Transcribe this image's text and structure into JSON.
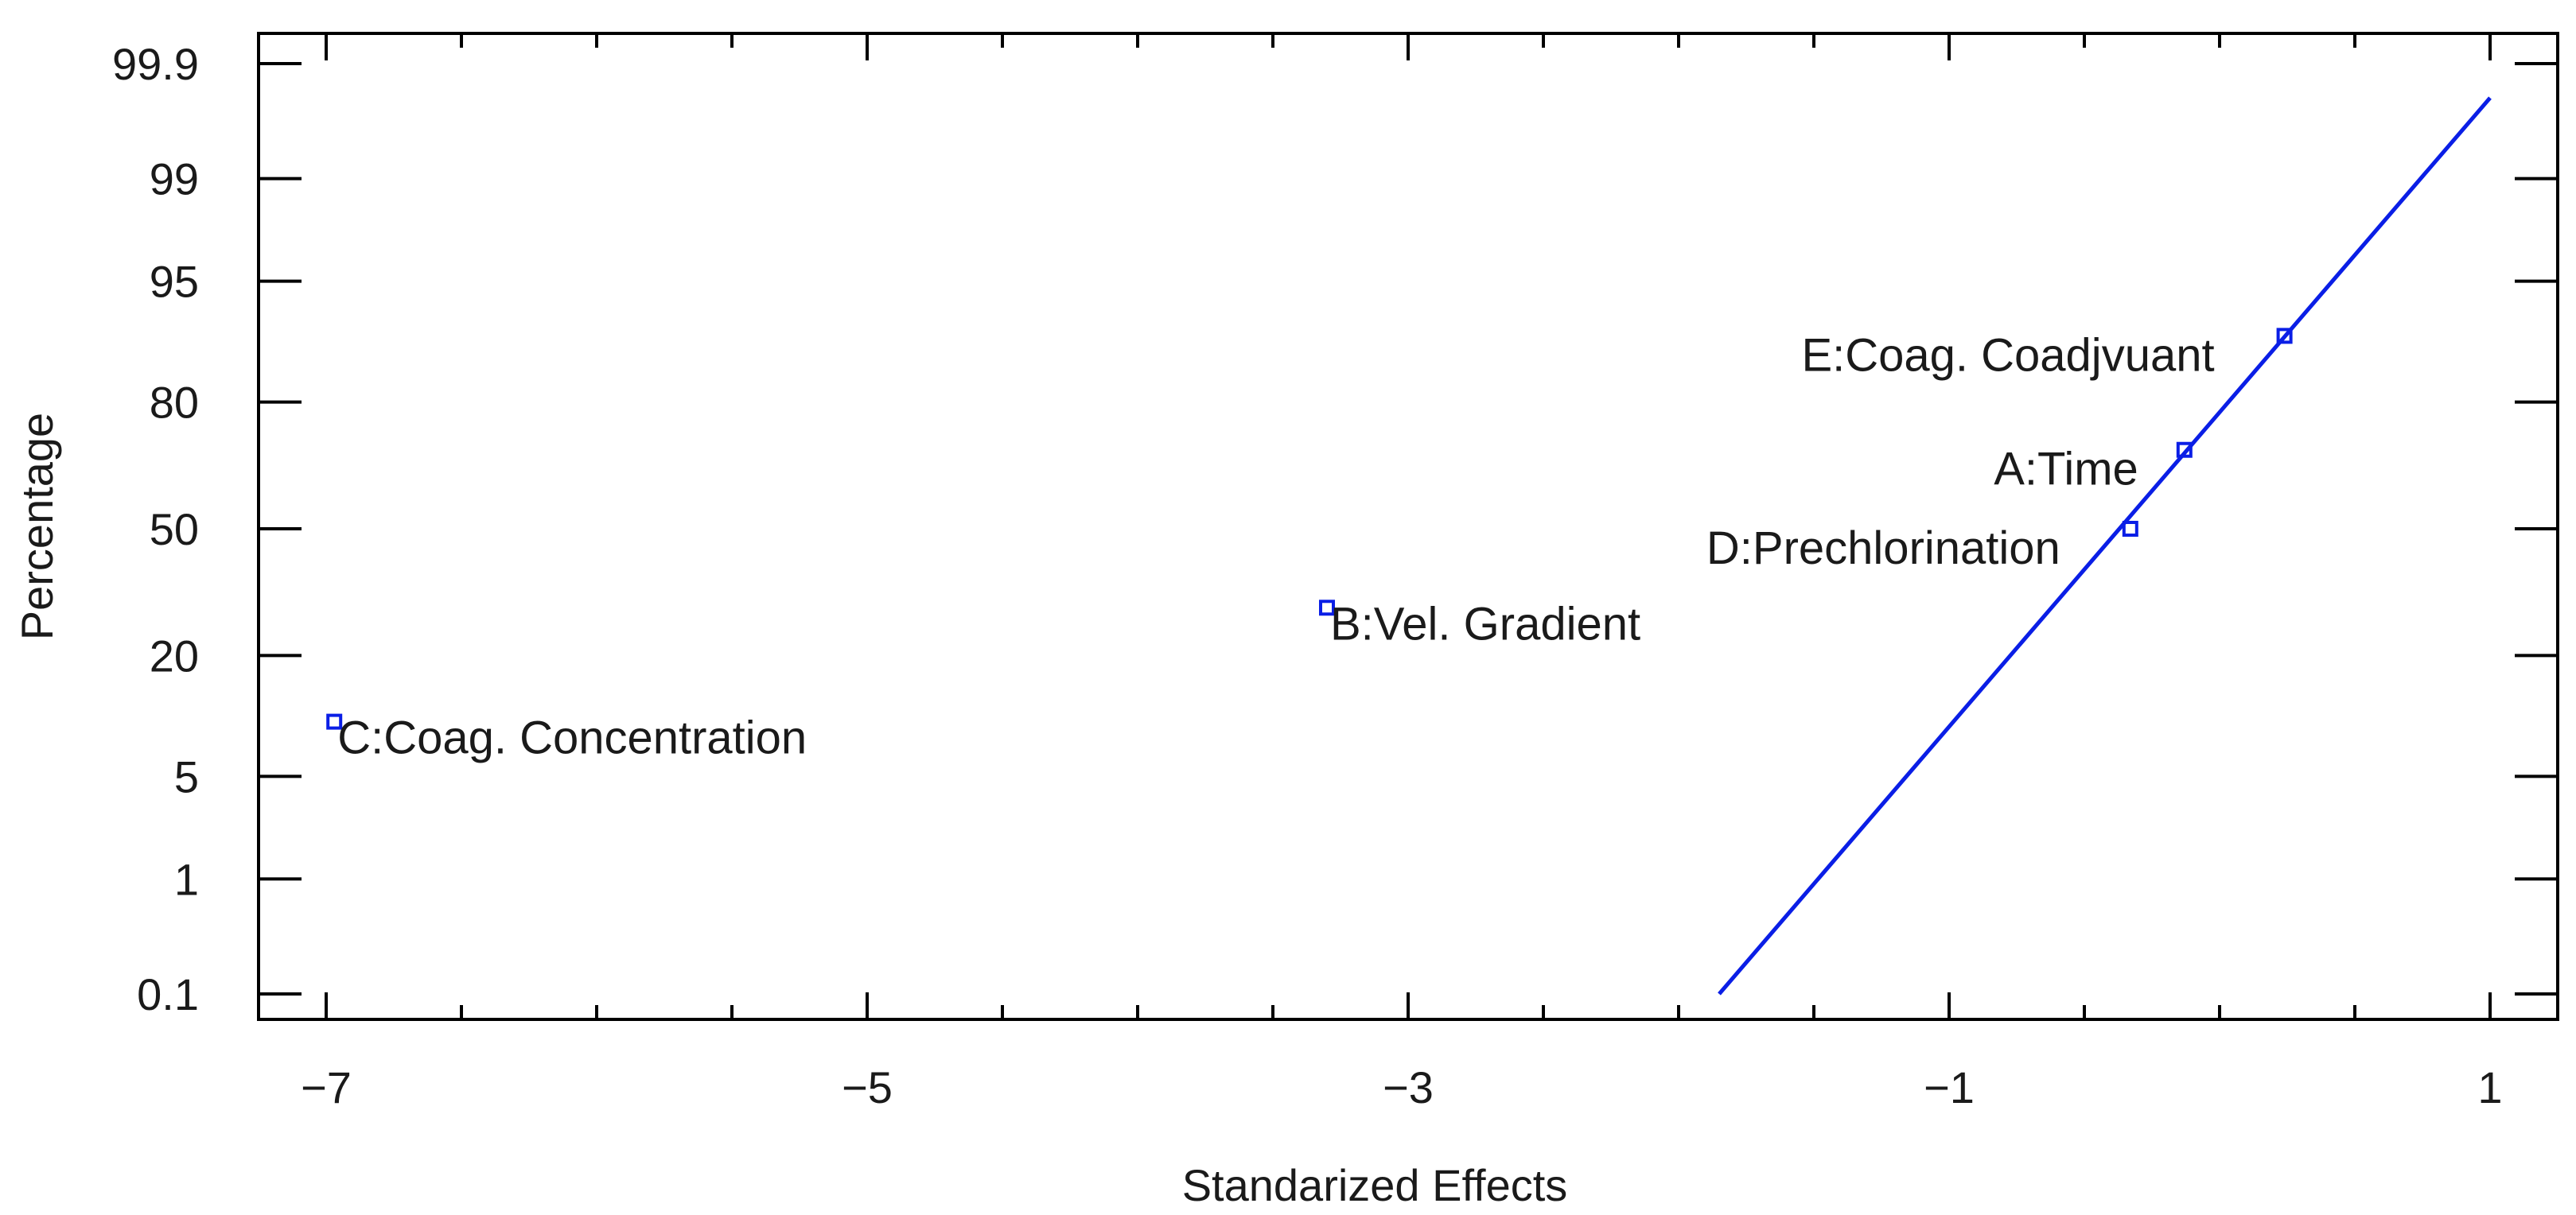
{
  "chart_data": {
    "type": "scatter",
    "title": "",
    "xlabel": "Standarized Effects",
    "ylabel": "Percentage",
    "xlim": [
      -7.25,
      1.25
    ],
    "x_ticks": [
      -7,
      -5,
      -3,
      -1,
      1
    ],
    "x_tick_labels": [
      "−7",
      "−5",
      "−3",
      "−1",
      "1"
    ],
    "y_ticks": [
      0.1,
      1,
      5,
      20,
      50,
      80,
      95,
      99,
      99.9
    ],
    "y_tick_labels": [
      "0.1",
      "1",
      "5",
      "20",
      "50",
      "80",
      "95",
      "99",
      "99.9"
    ],
    "points": [
      {
        "label": "C:Coag. Concentration",
        "x": -6.97,
        "y": 10
      },
      {
        "label": "B:Vel. Gradient",
        "x": -3.3,
        "y": 30
      },
      {
        "label": "D:Prechlorination",
        "x": -0.33,
        "y": 50
      },
      {
        "label": "A:Time",
        "x": -0.13,
        "y": 70
      },
      {
        "label": "E:Coag. Coadjvuant",
        "x": 0.24,
        "y": 90
      }
    ],
    "reference_line": {
      "x_start": -1.85,
      "y_start": 0.1,
      "x_end": 1.0,
      "y_end": 99.79
    },
    "series_color": "#0a1ee6",
    "grid": false
  }
}
